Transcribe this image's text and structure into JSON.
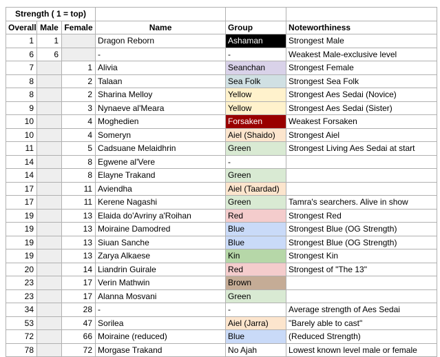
{
  "sheet": {
    "title": "Strength ( 1 = top)",
    "headers": {
      "overall": "Overall",
      "male": "Male",
      "female": "Female",
      "name": "Name",
      "group": "Group",
      "noteworthiness": "Noteworthiness"
    }
  },
  "colors": {
    "grid": "#b0b0b0",
    "empty_cell": "#eeeeee",
    "groups": {
      "black": {
        "bg": "#000000",
        "fg": "#ffffff"
      },
      "dark_red": {
        "bg": "#990000",
        "fg": "#ffffff"
      },
      "lavender": {
        "bg": "#d9d2e9",
        "fg": "#000000"
      },
      "pale_cyan": {
        "bg": "#d0e0e3",
        "fg": "#000000"
      },
      "pale_yellow": {
        "bg": "#fff2cc",
        "fg": "#000000"
      },
      "peach": {
        "bg": "#fce5cd",
        "fg": "#000000"
      },
      "pale_green": {
        "bg": "#d9ead3",
        "fg": "#000000"
      },
      "medium_green": {
        "bg": "#b6d7a8",
        "fg": "#000000"
      },
      "pale_red": {
        "bg": "#f4cccc",
        "fg": "#000000"
      },
      "pale_blue": {
        "bg": "#c9daf8",
        "fg": "#000000"
      },
      "brown": {
        "bg": "#c5ac96",
        "fg": "#000000"
      },
      "none": {
        "bg": "#ffffff",
        "fg": "#000000"
      }
    }
  },
  "rows": [
    {
      "overall": "1",
      "male": "1",
      "female": "",
      "name": "Dragon Reborn",
      "group": "Ashaman",
      "group_color": "black",
      "note": "Strongest Male"
    },
    {
      "overall": "6",
      "male": "6",
      "female": "",
      "name": "-",
      "group": "-",
      "group_color": "none",
      "note": "Weakest Male-exclusive level"
    },
    {
      "overall": "7",
      "male": "",
      "female": "1",
      "name": "Alivia",
      "group": "Seanchan",
      "group_color": "lavender",
      "note": "Strongest Female"
    },
    {
      "overall": "8",
      "male": "",
      "female": "2",
      "name": "Talaan",
      "group": "Sea Folk",
      "group_color": "pale_cyan",
      "note": "Strongest Sea Folk"
    },
    {
      "overall": "8",
      "male": "",
      "female": "2",
      "name": "Sharina Melloy",
      "group": "Yellow",
      "group_color": "pale_yellow",
      "note": "Strongest Aes Sedai (Novice)"
    },
    {
      "overall": "9",
      "male": "",
      "female": "3",
      "name": "Nynaeve al'Meara",
      "group": "Yellow",
      "group_color": "pale_yellow",
      "note": "Strongest Aes Sedai (Sister)"
    },
    {
      "overall": "10",
      "male": "",
      "female": "4",
      "name": "Moghedien",
      "group": "Forsaken",
      "group_color": "dark_red",
      "note": "Weakest Forsaken"
    },
    {
      "overall": "10",
      "male": "",
      "female": "4",
      "name": "Someryn",
      "group": "Aiel (Shaido)",
      "group_color": "peach",
      "note": "Strongest Aiel"
    },
    {
      "overall": "11",
      "male": "",
      "female": "5",
      "name": "Cadsuane Melaidhrin",
      "group": "Green",
      "group_color": "pale_green",
      "note": "Strongest Living Aes Sedai at start"
    },
    {
      "overall": "14",
      "male": "",
      "female": "8",
      "name": "Egwene al'Vere",
      "group": "-",
      "group_color": "none",
      "note": ""
    },
    {
      "overall": "14",
      "male": "",
      "female": "8",
      "name": "Elayne Trakand",
      "group": "Green",
      "group_color": "pale_green",
      "note": ""
    },
    {
      "overall": "17",
      "male": "",
      "female": "11",
      "name": "Aviendha",
      "group": "Aiel (Taardad)",
      "group_color": "peach",
      "note": ""
    },
    {
      "overall": "17",
      "male": "",
      "female": "11",
      "name": "Kerene Nagashi",
      "group": "Green",
      "group_color": "pale_green",
      "note": "Tamra's searchers. Alive in show"
    },
    {
      "overall": "19",
      "male": "",
      "female": "13",
      "name": "Elaida do'Avriny a'Roihan",
      "group": "Red",
      "group_color": "pale_red",
      "note": "Strongest Red"
    },
    {
      "overall": "19",
      "male": "",
      "female": "13",
      "name": "Moiraine Damodred",
      "group": "Blue",
      "group_color": "pale_blue",
      "note": "Strongest Blue (OG Strength)"
    },
    {
      "overall": "19",
      "male": "",
      "female": "13",
      "name": "Siuan Sanche",
      "group": "Blue",
      "group_color": "pale_blue",
      "note": "Strongest Blue (OG Strength)"
    },
    {
      "overall": "19",
      "male": "",
      "female": "13",
      "name": "Zarya Alkaese",
      "group": "Kin",
      "group_color": "medium_green",
      "note": "Strongest Kin"
    },
    {
      "overall": "20",
      "male": "",
      "female": "14",
      "name": "Liandrin Guirale",
      "group": "Red",
      "group_color": "pale_red",
      "note": "Strongest of \"The 13\""
    },
    {
      "overall": "23",
      "male": "",
      "female": "17",
      "name": "Verin Mathwin",
      "group": "Brown",
      "group_color": "brown",
      "note": ""
    },
    {
      "overall": "23",
      "male": "",
      "female": "17",
      "name": "Alanna Mosvani",
      "group": "Green",
      "group_color": "pale_green",
      "note": ""
    },
    {
      "overall": "34",
      "male": "",
      "female": "28",
      "name": "-",
      "group": "-",
      "group_color": "none",
      "note": "Average strength of Aes Sedai"
    },
    {
      "overall": "53",
      "male": "",
      "female": "47",
      "name": "Sorilea",
      "group": "Aiel (Jarra)",
      "group_color": "peach",
      "note": "\"Barely able to cast\""
    },
    {
      "overall": "72",
      "male": "",
      "female": "66",
      "name": "Moiraine (reduced)",
      "group": "Blue",
      "group_color": "pale_blue",
      "note": "(Reduced Strength)"
    },
    {
      "overall": "78",
      "male": "",
      "female": "72",
      "name": "Morgase Trakand",
      "group": "No Ajah",
      "group_color": "none",
      "note": "Lowest known level male or female"
    }
  ]
}
